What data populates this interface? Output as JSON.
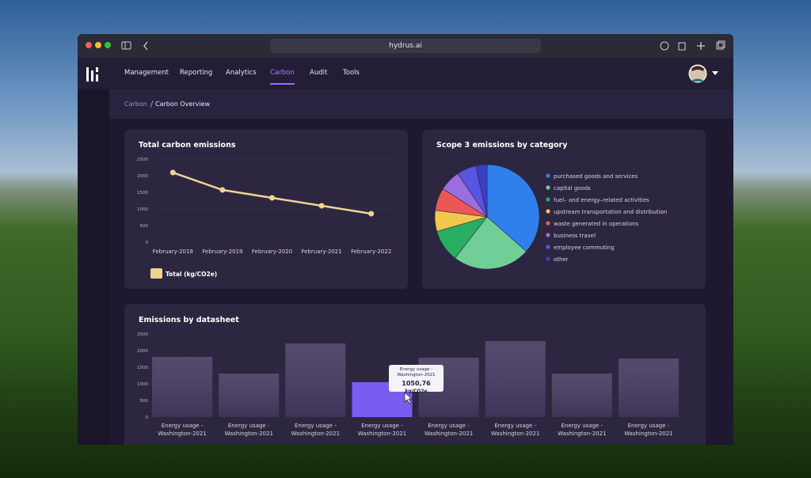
{
  "browser": {
    "url": "hydrus.ai"
  },
  "nav": {
    "items": [
      "Management",
      "Reporting",
      "Analytics",
      "Carbon",
      "Audit",
      "Tools"
    ],
    "active": 3
  },
  "breadcrumb": [
    "Carbon",
    "Carbon Overview"
  ],
  "chart_data": [
    {
      "type": "line",
      "title": "Total carbon emissions",
      "categories": [
        "February-2018",
        "February-2019",
        "February-2020",
        "February-2021",
        "February-2022"
      ],
      "series": [
        {
          "name": "Total (kg/CO2e)",
          "color": "#eed58e",
          "values": [
            2095,
            1571,
            1333,
            1095,
            857
          ]
        }
      ],
      "ylim": [
        0,
        2500
      ],
      "yticks": [
        0,
        500,
        1000,
        1500,
        2000,
        2500
      ],
      "grid": true,
      "legend": "bottom-left"
    },
    {
      "type": "pie",
      "title": "Scope 3 emissions by category",
      "categories": [
        "purchased goods and services",
        "capital goods",
        "fuel– and energy–related activities",
        "upstream transportation and distribution",
        "waste generated in operations",
        "business travel",
        "employee commuting",
        "other"
      ],
      "values": [
        36.5,
        24,
        10,
        6.5,
        7,
        6.5,
        6,
        3.5
      ],
      "colors": [
        "#2f80ed",
        "#6fcf97",
        "#27ae60",
        "#f2c94c",
        "#eb5757",
        "#9b6ee0",
        "#5a55e0",
        "#3b3ec4"
      ],
      "legend": "right"
    },
    {
      "type": "bar",
      "title": "Emissions by datasheet",
      "categories": [
        "Energy usage - Washington-2021",
        "Energy usage - Washington-2021",
        "Energy usage - Washington-2021",
        "Energy usage - Washington-2021",
        "Energy usage - Washington-2021",
        "Energy usage - Washington-2021",
        "Energy usage - Washington-2021",
        "Energy usage - Washington-2021"
      ],
      "values": [
        1810,
        1310,
        2214,
        1050.76,
        1786,
        2286,
        1310,
        1762
      ],
      "value_labels": [
        null,
        null,
        null,
        "1050,76",
        null,
        null,
        null,
        null
      ],
      "color": "#463b62",
      "highlight_color": "#7b5cf0",
      "highlight": 3,
      "tooltip_unit": "kg/CO2e",
      "ylim": [
        0,
        2500
      ],
      "yticks": [
        0,
        500,
        1000,
        1500,
        2000,
        2500
      ]
    }
  ]
}
